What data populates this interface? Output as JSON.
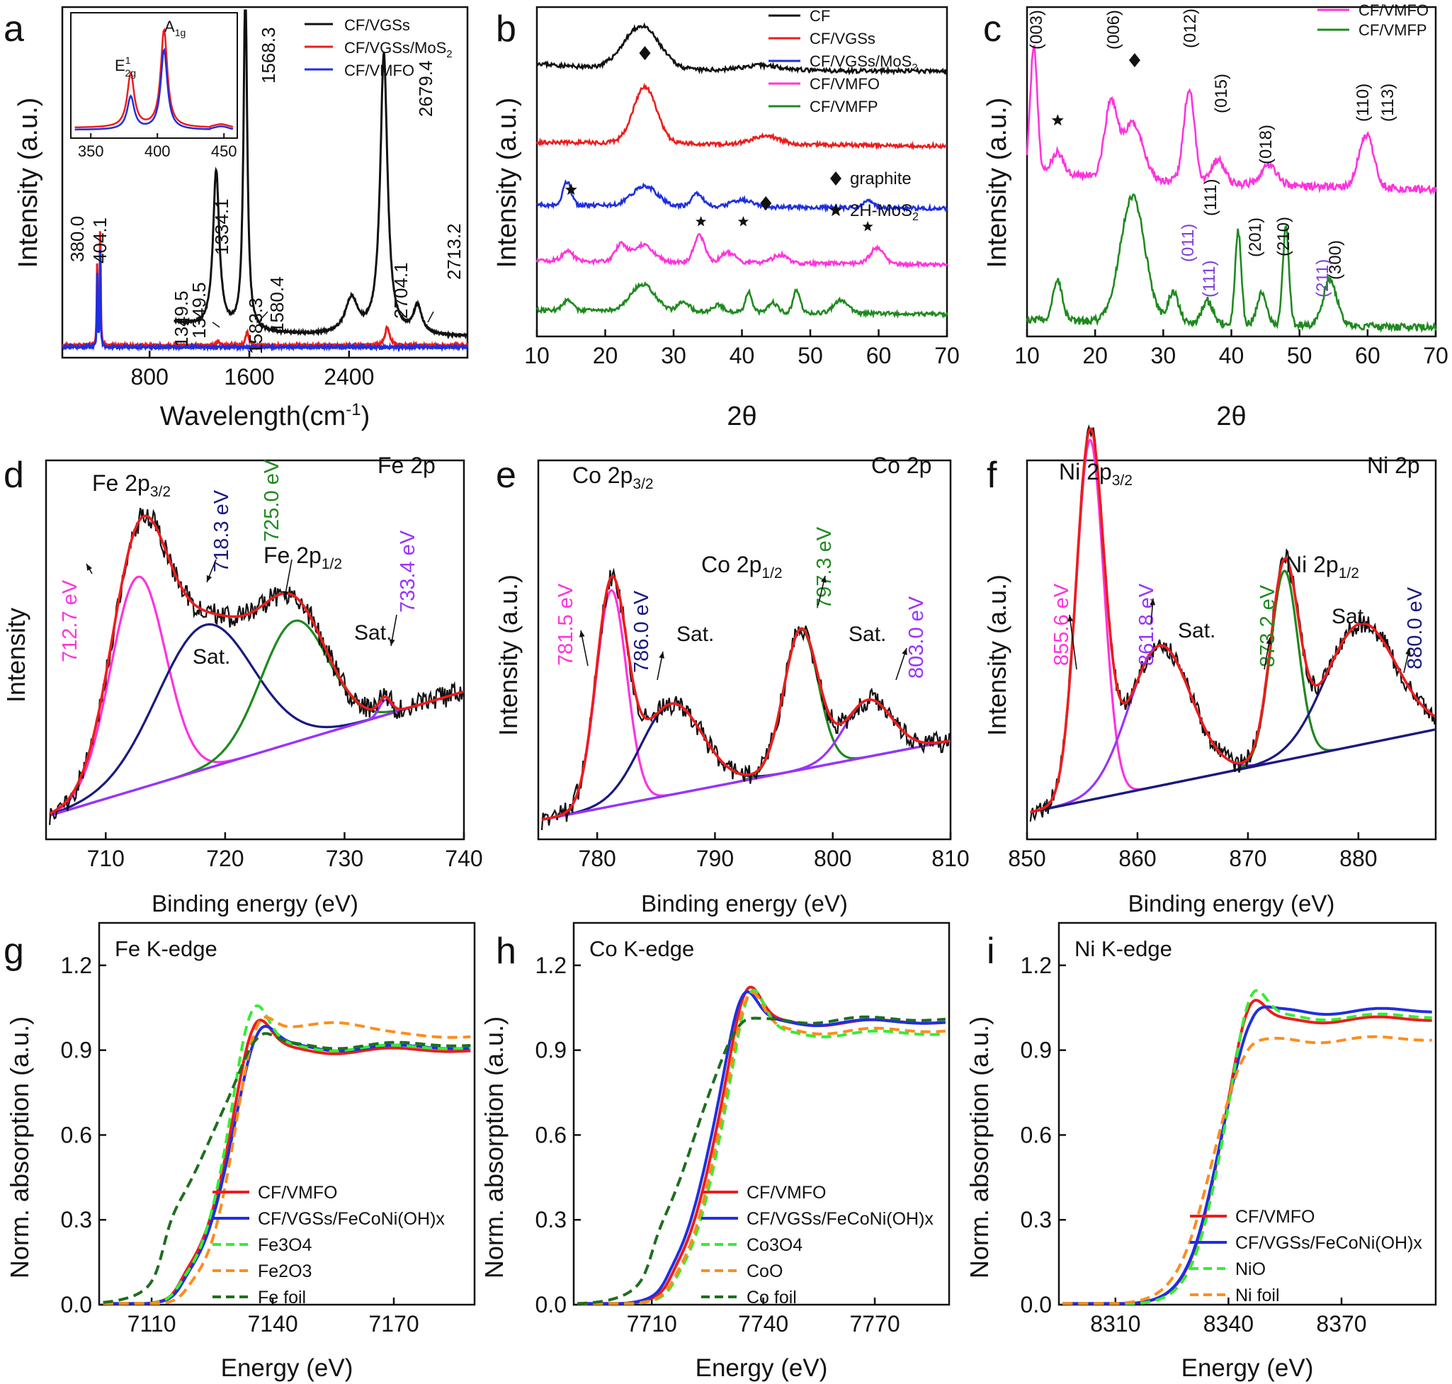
{
  "figure": {
    "panels": [
      "a",
      "b",
      "c",
      "d",
      "e",
      "f",
      "g",
      "h",
      "i"
    ]
  },
  "colors": {
    "black": "#111111",
    "red": "#ee1c1c",
    "blue": "#1f2fe0",
    "magenta": "#ff33dd",
    "green": "#1e8a1e",
    "navy": "#1a1a80",
    "violet": "#9933ff",
    "lime": "#33ee33",
    "orange": "#ff8c1a",
    "darkgreen": "#1e6e1e",
    "purple": "#7f3fd8"
  },
  "chart_data": [
    {
      "id": "a",
      "type": "line",
      "xlabel": "Wavelength(cm",
      "xlabel_sup": "-1",
      "xlabel_close": ")",
      "ylabel": "Intensity (a.u.)",
      "xlim": [
        100,
        3350
      ],
      "ylim": [
        0,
        1
      ],
      "xticks": [
        800,
        1600,
        2400
      ],
      "legend": {
        "position": "top-right",
        "entries": [
          "CF/VGSs",
          "CF/VGSs/MoS",
          "CF/VMFO"
        ],
        "subscript": [
          "",
          "2",
          ""
        ]
      },
      "series": [
        {
          "name": "CF/VGSs",
          "color": "#111111",
          "x_start": 1000,
          "x_end": 3350,
          "peaks": [
            [
              1334.1,
              0.45,
              30
            ],
            [
              1568.3,
              0.98,
              18
            ],
            [
              2679.4,
              0.8,
              35
            ],
            [
              2420,
              0.1,
              60
            ],
            [
              2950,
              0.08,
              40
            ]
          ],
          "baseline": 0.06
        },
        {
          "name": "CF/VGSs/MoS2",
          "color": "#ee1c1c",
          "x_start": 100,
          "x_end": 3350,
          "peaks": [
            [
              380.0,
              0.24,
              4
            ],
            [
              404.1,
              0.34,
              4
            ],
            [
              1349.5,
              0.012,
              15
            ],
            [
              1583.3,
              0.04,
              15
            ],
            [
              2704.1,
              0.035,
              18
            ],
            [
              2713.2,
              0.02,
              25
            ]
          ],
          "baseline": 0.035
        },
        {
          "name": "CF/VMFO",
          "color": "#1f2fe0",
          "x_start": 100,
          "x_end": 3350,
          "peaks": [
            [
              380.0,
              0.22,
              3.5
            ],
            [
              404.1,
              0.3,
              3.5
            ]
          ],
          "baseline": 0.03
        }
      ],
      "annotations": [
        "380.0",
        "404.1",
        "1349.5",
        "1349.5",
        "1334.1",
        "1568.3",
        "1583.3",
        "1580.4",
        "2679.4",
        "2704.1",
        "2713.2"
      ],
      "inset": {
        "xlim": [
          335,
          460
        ],
        "xticks": [
          350,
          400,
          450
        ],
        "labels": [
          "E",
          "A"
        ],
        "label_sup": "1",
        "label_sub": [
          "2g",
          "1g"
        ]
      }
    },
    {
      "id": "b",
      "type": "line",
      "xlabel": "2θ",
      "ylabel": "Intensity (a.u.)",
      "xlim": [
        10,
        70
      ],
      "xticks": [
        10,
        20,
        30,
        40,
        50,
        60,
        70
      ],
      "legend": {
        "position": "top-right",
        "entries": [
          "CF",
          "CF/VGSs",
          "CF/VGSs/MoS",
          "CF/VMFO",
          "CF/VMFP"
        ],
        "subscript": [
          "",
          "",
          "2",
          "",
          ""
        ]
      },
      "series": [
        {
          "name": "CF",
          "color": "#111111",
          "offset": 0.81,
          "peaks": [
            [
              25.3,
              0.13,
              2.6
            ],
            [
              43,
              0.015,
              3
            ]
          ]
        },
        {
          "name": "CF/VGSs",
          "color": "#ee1c1c",
          "offset": 0.59,
          "peaks": [
            [
              25.8,
              0.17,
              1.7
            ],
            [
              43.5,
              0.025,
              2
            ]
          ]
        },
        {
          "name": "CF/VGSs/MoS2",
          "color": "#1f2fe0",
          "offset": 0.4,
          "peaks": [
            [
              14.4,
              0.07,
              0.6
            ],
            [
              25.8,
              0.06,
              1.8
            ],
            [
              33.5,
              0.04,
              0.8
            ],
            [
              40,
              0.02,
              1.5
            ],
            [
              58.5,
              0.02,
              0.8
            ]
          ]
        },
        {
          "name": "CF/VMFO",
          "color": "#ff33dd",
          "offset": 0.23,
          "peaks": [
            [
              14.5,
              0.03,
              0.8
            ],
            [
              22.3,
              0.05,
              0.8
            ],
            [
              25.5,
              0.05,
              1.5
            ],
            [
              33.8,
              0.08,
              0.8
            ],
            [
              38,
              0.03,
              1
            ],
            [
              45.5,
              0.025,
              1
            ],
            [
              59.8,
              0.05,
              1
            ]
          ]
        },
        {
          "name": "CF/VMFP",
          "color": "#1e8a1e",
          "offset": 0.08,
          "peaks": [
            [
              14.5,
              0.03,
              0.7
            ],
            [
              25.5,
              0.08,
              1.8
            ],
            [
              31.5,
              0.03,
              0.8
            ],
            [
              36.5,
              0.02,
              0.8
            ],
            [
              41,
              0.06,
              0.5
            ],
            [
              44.5,
              0.03,
              0.7
            ],
            [
              48,
              0.07,
              0.5
            ],
            [
              54.5,
              0.04,
              1
            ]
          ]
        }
      ],
      "annotations": {
        "graphite": "graphite",
        "mos2": "2H-MoS",
        "mos2_sub": "2"
      }
    },
    {
      "id": "c",
      "type": "line",
      "xlabel": "2θ",
      "ylabel": "Intensity (a.u.)",
      "xlim": [
        10,
        70
      ],
      "xticks": [
        10,
        20,
        30,
        40,
        50,
        60,
        70
      ],
      "legend": {
        "position": "top-right",
        "entries": [
          "CF/VMFO",
          "CF/VMFP"
        ]
      },
      "series": [
        {
          "name": "CF/VMFO",
          "color": "#ff33dd",
          "offset": 0.47,
          "peaks": [
            [
              11,
              0.38,
              0.5
            ],
            [
              14.5,
              0.06,
              0.8
            ],
            [
              22.3,
              0.22,
              0.9
            ],
            [
              25.5,
              0.17,
              1.5
            ],
            [
              33.8,
              0.28,
              0.8
            ],
            [
              38,
              0.07,
              1
            ],
            [
              45.5,
              0.06,
              1.2
            ],
            [
              59.8,
              0.16,
              1.1
            ]
          ]
        },
        {
          "name": "CF/VMFP",
          "color": "#1e8a1e",
          "offset": 0.05,
          "peaks": [
            [
              14.5,
              0.12,
              0.7
            ],
            [
              25.5,
              0.38,
              1.8
            ],
            [
              31.5,
              0.09,
              0.8
            ],
            [
              36.5,
              0.07,
              0.8
            ],
            [
              41,
              0.28,
              0.45
            ],
            [
              44.5,
              0.1,
              0.7
            ],
            [
              48,
              0.3,
              0.45
            ],
            [
              54.5,
              0.14,
              1
            ]
          ]
        }
      ],
      "labels_black": [
        "(003)",
        "(006)",
        "(012)",
        "(015)",
        "(018)",
        "(110)",
        "(113)",
        "(111)",
        "(201)",
        "(210)",
        "(300)"
      ],
      "labels_violet": [
        "(011)",
        "(111)",
        "(211)"
      ]
    },
    {
      "id": "d",
      "type": "line",
      "xlabel": "Binding energy (eV)",
      "ylabel": "Intensity",
      "xlim": [
        705,
        740
      ],
      "xticks": [
        710,
        720,
        730,
        740
      ],
      "title": "Fe 2p",
      "labels": {
        "main": "Fe 2p",
        "sub1": "3/2",
        "sub2": "1/2",
        "sat1": "Sat.",
        "sat2": "Sat."
      },
      "peaks": [
        {
          "center": 712.7,
          "label": "712.7 eV",
          "color": "#ff33dd"
        },
        {
          "center": 718.3,
          "label": "718.3 eV",
          "color": "#1a1a80"
        },
        {
          "center": 725.0,
          "label": "725.0 eV",
          "color": "#1e8a1e"
        },
        {
          "center": 733.4,
          "label": "733.4 eV",
          "color": "#9933ff"
        }
      ]
    },
    {
      "id": "e",
      "type": "line",
      "xlabel": "Binding energy (eV)",
      "ylabel": "Intensity (a.u.)",
      "xlim": [
        775,
        810
      ],
      "xticks": [
        780,
        790,
        800,
        810
      ],
      "title": "Co 2p",
      "labels": {
        "main": "Co 2p",
        "sub1": "3/2",
        "sub2": "1/2",
        "sat1": "Sat.",
        "sat2": "Sat."
      },
      "peaks": [
        {
          "center": 781.5,
          "label": "781.5 eV",
          "color": "#ff33dd"
        },
        {
          "center": 786.0,
          "label": "786.0 eV",
          "color": "#1a1a80"
        },
        {
          "center": 797.3,
          "label": "797.3 eV",
          "color": "#1e8a1e"
        },
        {
          "center": 803.0,
          "label": "803.0 eV",
          "color": "#9933ff"
        }
      ]
    },
    {
      "id": "f",
      "type": "line",
      "xlabel": "Binding energy (eV)",
      "ylabel": "Intensity (a.u.)",
      "xlim": [
        850,
        887
      ],
      "xticks": [
        850,
        860,
        870,
        880
      ],
      "title": "Ni 2p",
      "labels": {
        "main": "Ni 2p",
        "sub1": "3/2",
        "sub2": "1/2",
        "sat1": "Sat.",
        "sat2": "Sat."
      },
      "peaks": [
        {
          "center": 855.6,
          "label": "855.6 eV",
          "color": "#ff33dd"
        },
        {
          "center": 861.8,
          "label": "861.8 eV",
          "color": "#9933ff"
        },
        {
          "center": 873.2,
          "label": "873.2 eV",
          "color": "#1e8a1e"
        },
        {
          "center": 880.0,
          "label": "880.0 eV",
          "color": "#1a1a80"
        }
      ]
    },
    {
      "id": "g",
      "type": "line",
      "title": "Fe K-edge",
      "xlabel": "Energy (eV)",
      "ylabel": "Norm. absorption (a.u.)",
      "xlim": [
        7097,
        7190
      ],
      "ylim": [
        0,
        1.35
      ],
      "xticks": [
        7110,
        7140,
        7170
      ],
      "yticks": [
        0.0,
        0.3,
        0.6,
        0.9,
        1.2
      ],
      "legend": {
        "position": "bottom-right",
        "entries": [
          {
            "name": "CF/VMFO",
            "color": "#ee1c1c",
            "dash": false
          },
          {
            "name": "CF/VGSs/FeCoNi(OH)x",
            "color": "#1f2fe0",
            "dash": false
          },
          {
            "name": "Fe3O4",
            "color": "#33ee33",
            "dash": true
          },
          {
            "name": "Fe2O3",
            "color": "#ff8c1a",
            "dash": true
          },
          {
            "name": "Fe foil",
            "color": "#1e6e1e",
            "dash": true
          }
        ]
      },
      "series": [
        {
          "name": "CF/VMFO",
          "e0": 7128,
          "w": 3.6,
          "peak": 7135,
          "peakAmp": 0.2,
          "end": 0.9,
          "pre": 0.08
        },
        {
          "name": "CF/VGSs/FeCoNi(OH)x",
          "e0": 7128.5,
          "w": 3.6,
          "peak": 7136,
          "peakAmp": 0.15,
          "end": 0.91,
          "pre": 0.07
        },
        {
          "name": "Fe3O4",
          "e0": 7127.5,
          "w": 3.4,
          "peak": 7134.5,
          "peakAmp": 0.24,
          "end": 0.91,
          "pre": 0.06
        },
        {
          "name": "Fe2O3",
          "e0": 7129.5,
          "w": 3.2,
          "peak": 7135.5,
          "peakAmp": 0.15,
          "end": 0.95,
          "pre": 0.05
        },
        {
          "name": "Fe foil",
          "e0": 7124,
          "w": 5.5,
          "peak": 7136,
          "peakAmp": 0.1,
          "end": 0.92,
          "pre": 0.22
        }
      ]
    },
    {
      "id": "h",
      "type": "line",
      "title": "Co K-edge",
      "xlabel": "Energy (eV)",
      "ylabel": "Norm. absorption (a.u.)",
      "xlim": [
        7689,
        7790
      ],
      "ylim": [
        0,
        1.35
      ],
      "xticks": [
        7710,
        7740,
        7770
      ],
      "yticks": [
        0.0,
        0.3,
        0.6,
        0.9,
        1.2
      ],
      "legend": {
        "position": "bottom-right",
        "entries": [
          {
            "name": "CF/VMFO",
            "color": "#ee1c1c",
            "dash": false
          },
          {
            "name": "CF/VGSs/FeCoNi(OH)x",
            "color": "#1f2fe0",
            "dash": false
          },
          {
            "name": "Co3O4",
            "color": "#33ee33",
            "dash": true
          },
          {
            "name": "CoO",
            "color": "#ff8c1a",
            "dash": true
          },
          {
            "name": "Co foil",
            "color": "#1e6e1e",
            "dash": true
          }
        ]
      },
      "series": [
        {
          "name": "CF/VMFO",
          "e0": 7726,
          "w": 4.2,
          "peak": 7735,
          "peakAmp": 0.22,
          "end": 1.0,
          "pre": 0.06
        },
        {
          "name": "CF/VGSs/FeCoNi(OH)x",
          "e0": 7725,
          "w": 4.2,
          "peak": 7734,
          "peakAmp": 0.2,
          "end": 1.0,
          "pre": 0.06
        },
        {
          "name": "Co3O4",
          "e0": 7727,
          "w": 4.0,
          "peak": 7736,
          "peakAmp": 0.24,
          "end": 0.96,
          "pre": 0.05
        },
        {
          "name": "CoO",
          "e0": 7726.5,
          "w": 4.0,
          "peak": 7735.5,
          "peakAmp": 0.22,
          "end": 0.97,
          "pre": 0.05
        },
        {
          "name": "Co foil",
          "e0": 7721,
          "w": 5.5,
          "peak": 7733,
          "peakAmp": 0.06,
          "end": 1.01,
          "pre": 0.14
        }
      ]
    },
    {
      "id": "i",
      "type": "line",
      "title": "Ni K-edge",
      "xlabel": "Energy (eV)",
      "ylabel": "Norm. absorption (a.u.)",
      "xlim": [
        8295,
        8395
      ],
      "ylim": [
        0,
        1.35
      ],
      "xticks": [
        8310,
        8340,
        8370
      ],
      "yticks": [
        0.0,
        0.3,
        0.6,
        0.9,
        1.2
      ],
      "legend": {
        "position": "bottom-right",
        "entries": [
          {
            "name": "CF/VMFO",
            "color": "#ee1c1c",
            "dash": false
          },
          {
            "name": "CF/VGSs/FeCoNi(OH)x",
            "color": "#1f2fe0",
            "dash": false
          },
          {
            "name": "NiO",
            "color": "#33ee33",
            "dash": true
          },
          {
            "name": "Ni foil",
            "color": "#ff8c1a",
            "dash": true
          }
        ]
      },
      "series": [
        {
          "name": "CF/VMFO",
          "e0": 8337,
          "w": 4.2,
          "peak": 8345,
          "peakAmp": 0.18,
          "end": 1.01,
          "pre": 0.0
        },
        {
          "name": "CF/VGSs/FeCoNi(OH)x",
          "e0": 8337,
          "w": 4.2,
          "peak": 8346,
          "peakAmp": 0.08,
          "end": 1.04,
          "pre": 0.0
        },
        {
          "name": "NiO",
          "e0": 8337.5,
          "w": 4.0,
          "peak": 8345.5,
          "peakAmp": 0.2,
          "end": 1.02,
          "pre": 0.0
        },
        {
          "name": "Ni foil",
          "e0": 8335,
          "w": 4.5,
          "peak": 8344,
          "peakAmp": 0.05,
          "end": 0.94,
          "pre": 0.0
        }
      ]
    }
  ]
}
